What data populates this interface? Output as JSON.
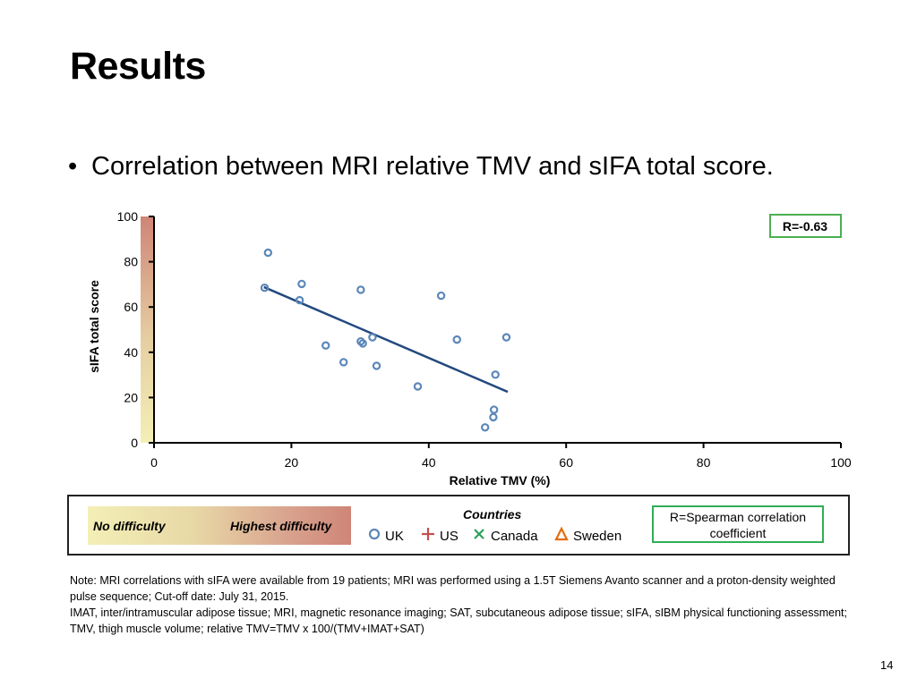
{
  "slide": {
    "title": "Results",
    "bullet": "Correlation between MRI relative TMV and sIFA total score.",
    "page_number": "14"
  },
  "chart_data": {
    "type": "scatter",
    "xlabel": "Relative TMV (%)",
    "ylabel": "sIFA  total score",
    "xlim": [
      0,
      100
    ],
    "ylim": [
      0,
      100
    ],
    "xticks": [
      0,
      20,
      40,
      60,
      80,
      100
    ],
    "yticks": [
      0,
      20,
      40,
      60,
      80,
      100
    ],
    "grid": false,
    "series": [
      {
        "name": "UK",
        "marker": "circle",
        "color": "#5b87b8",
        "points": [
          [
            16.6,
            84
          ],
          [
            16.1,
            68.5
          ],
          [
            21.5,
            70.2
          ],
          [
            21.2,
            63
          ],
          [
            30.1,
            67.6
          ],
          [
            41.8,
            65
          ],
          [
            25,
            43
          ],
          [
            30.1,
            44.8
          ],
          [
            30.4,
            43.9
          ],
          [
            31.8,
            46.6
          ],
          [
            27.6,
            35.6
          ],
          [
            32.4,
            34
          ],
          [
            38.4,
            24.9
          ],
          [
            44.1,
            45.6
          ],
          [
            51.3,
            46.6
          ],
          [
            49.7,
            30.1
          ],
          [
            49.5,
            14.6
          ],
          [
            49.4,
            11.3
          ],
          [
            48.2,
            6.8
          ]
        ]
      }
    ],
    "trendline": {
      "x": [
        16,
        51.5
      ],
      "y": [
        68.8,
        22.5
      ],
      "color": "#23497f"
    },
    "annotation": "R=-0.63",
    "colors": {
      "axis": "#000000",
      "annotation_border": "#4caf50",
      "difficulty_low": "#f3efb6",
      "difficulty_high": "#cf8577"
    }
  },
  "legend": {
    "difficulty_low_label": "No difficulty",
    "difficulty_high_label": "Highest difficulty",
    "countries_title": "Countries",
    "countries": [
      {
        "name": "UK",
        "icon": "circle-icon",
        "color": "#5b87b8"
      },
      {
        "name": "US",
        "icon": "plus-icon",
        "color": "#c0504d"
      },
      {
        "name": "Canada",
        "icon": "cross-icon",
        "color": "#2ca05a"
      },
      {
        "name": "Sweden",
        "icon": "triangle-icon",
        "color": "#e46c0a"
      }
    ],
    "spearman_line1": "R=Spearman correlation",
    "spearman_line2": "coefficient"
  },
  "note": {
    "line1": "Note: MRI correlations with sIFA were available from 19 patients; MRI was performed using a 1.5T Siemens Avanto scanner and a proton-density weighted pulse sequence; Cut-off date: July 31, 2015.",
    "line2": "IMAT, inter/intramuscular adipose tissue; MRI, magnetic resonance imaging; SAT, subcutaneous adipose tissue;  sIFA, sIBM physical functioning assessment; TMV, thigh muscle volume; relative TMV=TMV x 100/(TMV+IMAT+SAT)"
  }
}
